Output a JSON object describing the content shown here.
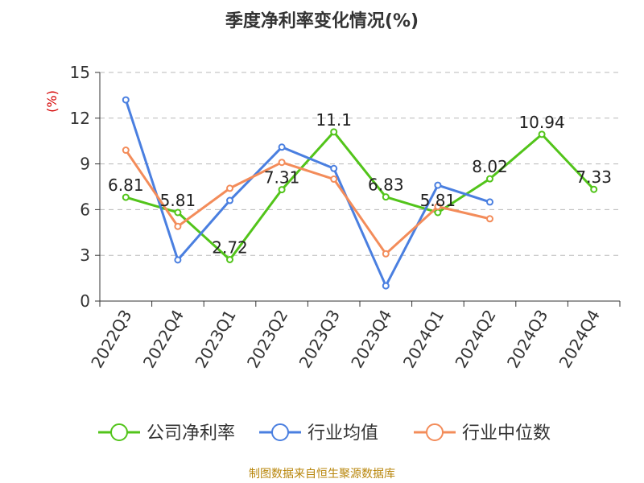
{
  "title": "季度净利率变化情况(%)",
  "source": "制图数据来自恒生聚源数据库",
  "colors": {
    "company": "#52c41a",
    "industry_avg": "#4a7fe0",
    "industry_median": "#f38c5a",
    "unit_label": "#d40000",
    "source": "#b8860b"
  },
  "chart_data": {
    "type": "line",
    "title": "季度净利率变化情况(%)",
    "ylabel": "(%)",
    "ylim": [
      0,
      15
    ],
    "yticks": [
      0,
      3,
      6,
      9,
      12,
      15
    ],
    "grid": true,
    "legend_position": "bottom",
    "categories": [
      "2022Q3",
      "2022Q4",
      "2023Q1",
      "2023Q2",
      "2023Q3",
      "2023Q4",
      "2024Q1",
      "2024Q2",
      "2024Q3",
      "2024Q4"
    ],
    "series": [
      {
        "name": "公司净利率",
        "color": "#52c41a",
        "values": [
          6.81,
          5.81,
          2.72,
          7.31,
          11.1,
          6.83,
          5.81,
          8.02,
          10.94,
          7.33
        ],
        "labels": [
          "6.81",
          "5.81",
          "2.72",
          "7.31",
          "11.1",
          "6.83",
          "5.81",
          "8.02",
          "10.94",
          "7.33"
        ]
      },
      {
        "name": "行业均值",
        "color": "#4a7fe0",
        "values": [
          13.2,
          2.7,
          6.6,
          10.1,
          8.7,
          1.0,
          7.6,
          6.5,
          null,
          null
        ]
      },
      {
        "name": "行业中位数",
        "color": "#f38c5a",
        "values": [
          9.9,
          4.9,
          7.4,
          9.1,
          8.0,
          3.1,
          6.2,
          5.4,
          null,
          null
        ]
      }
    ]
  }
}
